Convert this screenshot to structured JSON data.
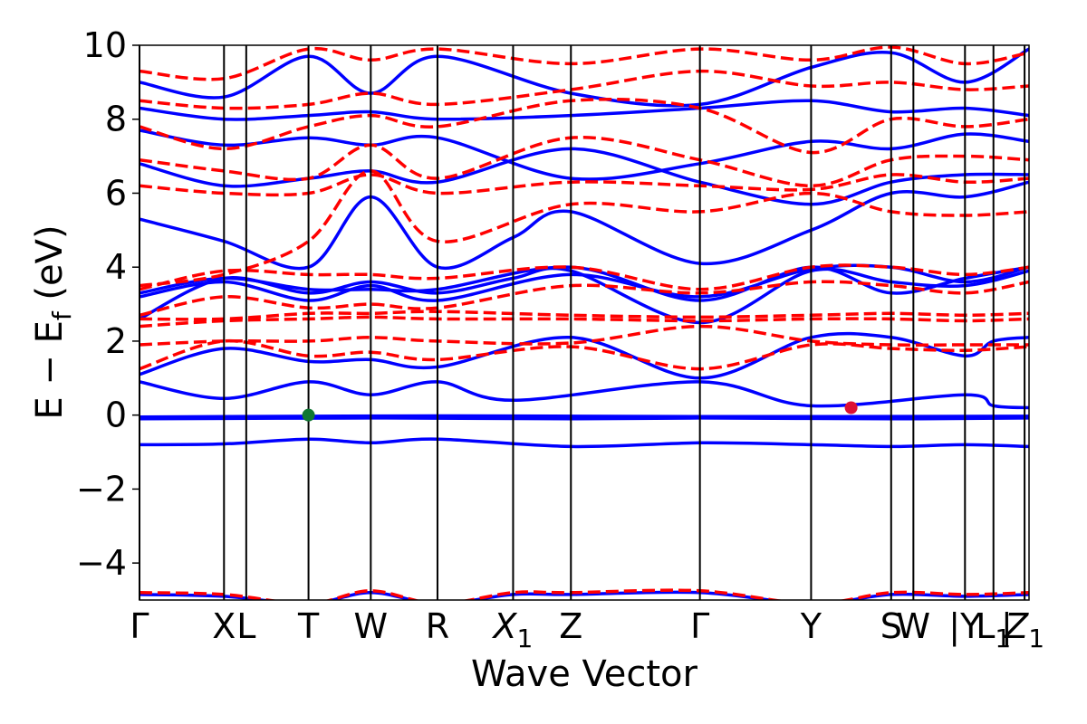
{
  "chart_data": {
    "type": "line",
    "title": "",
    "xlabel": "Wave Vector",
    "ylabel": "E − E_f (eV)",
    "ylabel_parts": {
      "main": "E − E",
      "sub": "f",
      "unit": " (eV)"
    },
    "ylim": [
      -5,
      10
    ],
    "yticks": [
      -4,
      -2,
      0,
      2,
      4,
      6,
      8,
      10
    ],
    "xlim": [
      0,
      10
    ],
    "kpoints": [
      {
        "label": "Γ",
        "x": 0.0
      },
      {
        "label": "X",
        "x": 0.95
      },
      {
        "label": "L",
        "x": 1.2
      },
      {
        "label": "T",
        "x": 1.9
      },
      {
        "label": "W",
        "x": 2.6
      },
      {
        "label": "R",
        "x": 3.35
      },
      {
        "label": "X1",
        "x": 4.2,
        "sub": "1"
      },
      {
        "label": "Z",
        "x": 4.85
      },
      {
        "label": "Γ",
        "x": 6.3
      },
      {
        "label": "Y",
        "x": 7.55
      },
      {
        "label": "S",
        "x": 8.45
      },
      {
        "label": "W",
        "x": 8.7
      },
      {
        "label": "|Y",
        "x": 9.28
      },
      {
        "label": "L1",
        "x": 9.6,
        "sub": "1"
      },
      {
        "label": "|",
        "x": 9.75
      },
      {
        "label": "Z1",
        "x": 9.95,
        "sub": "1"
      }
    ],
    "series": [
      {
        "color": "#0000ff",
        "dash": "solid",
        "x": [
          0,
          0.95,
          1.9,
          2.6,
          3.35,
          4.85,
          6.3,
          7.55,
          8.45,
          9.28,
          10
        ],
        "y": [
          -0.8,
          -0.78,
          -0.65,
          -0.75,
          -0.65,
          -0.85,
          -0.75,
          -0.8,
          -0.85,
          -0.8,
          -0.85
        ]
      },
      {
        "color": "#0000ff",
        "dash": "solid",
        "x": [
          0,
          2.6,
          4.85,
          6.3,
          8.45,
          10
        ],
        "y": [
          -0.1,
          -0.08,
          -0.1,
          -0.08,
          -0.1,
          -0.08
        ]
      },
      {
        "color": "#0000ff",
        "dash": "solid",
        "x": [
          0,
          3.35,
          6.3,
          10
        ],
        "y": [
          -0.05,
          -0.02,
          -0.04,
          -0.03
        ]
      },
      {
        "color": "#0000ff",
        "dash": "solid",
        "x": [
          0,
          0.95,
          1.9,
          2.6,
          3.35,
          4.2,
          6.3,
          7.55,
          9.28,
          9.6,
          10
        ],
        "y": [
          0.9,
          0.45,
          0.9,
          0.55,
          0.9,
          0.4,
          0.9,
          0.25,
          0.55,
          0.25,
          0.2
        ]
      },
      {
        "color": "#0000ff",
        "dash": "solid",
        "x": [
          0,
          0.95,
          1.9,
          2.6,
          3.35,
          4.85,
          6.3,
          7.55,
          8.45,
          9.28,
          9.6,
          10
        ],
        "y": [
          1.1,
          1.8,
          1.45,
          1.5,
          1.3,
          2.1,
          1.0,
          2.1,
          2.1,
          1.6,
          2.0,
          2.1
        ]
      },
      {
        "color": "#0000ff",
        "dash": "solid",
        "x": [
          0,
          0.95,
          1.9,
          2.6,
          3.35,
          4.2,
          4.85,
          6.3,
          7.55,
          8.45,
          9.28,
          10
        ],
        "y": [
          2.6,
          3.7,
          3.3,
          3.6,
          3.3,
          3.7,
          3.9,
          2.5,
          3.9,
          3.6,
          3.5,
          3.9
        ]
      },
      {
        "color": "#0000ff",
        "dash": "solid",
        "x": [
          0,
          0.95,
          1.9,
          2.6,
          3.35,
          4.85,
          6.3,
          7.55,
          8.45,
          9.28,
          10
        ],
        "y": [
          3.2,
          3.6,
          3.1,
          3.5,
          3.1,
          3.8,
          3.2,
          3.95,
          4.0,
          3.6,
          4.0
        ]
      },
      {
        "color": "#0000ff",
        "dash": "solid",
        "x": [
          0,
          0.95,
          1.9,
          2.6,
          3.35,
          4.85,
          6.3,
          7.55,
          8.45,
          9.28,
          10
        ],
        "y": [
          3.3,
          3.7,
          3.4,
          3.4,
          3.4,
          4.0,
          3.1,
          4.0,
          3.3,
          3.7,
          4.0
        ]
      },
      {
        "color": "#0000ff",
        "dash": "solid",
        "x": [
          0,
          0.95,
          1.9,
          2.6,
          3.35,
          4.2,
          4.85,
          6.3,
          7.55,
          8.45,
          9.28,
          10
        ],
        "y": [
          5.3,
          4.7,
          4.0,
          5.9,
          4.0,
          4.8,
          5.5,
          4.1,
          5.0,
          6.0,
          5.9,
          6.3
        ]
      },
      {
        "color": "#0000ff",
        "dash": "solid",
        "x": [
          0,
          0.95,
          1.9,
          2.6,
          3.35,
          4.85,
          6.3,
          7.55,
          8.45,
          9.28,
          10
        ],
        "y": [
          6.8,
          6.2,
          6.4,
          6.6,
          6.3,
          7.2,
          6.3,
          5.7,
          6.3,
          6.5,
          6.5
        ]
      },
      {
        "color": "#0000ff",
        "dash": "solid",
        "x": [
          0,
          0.95,
          1.9,
          2.6,
          3.35,
          4.85,
          6.3,
          7.55,
          8.45,
          9.28,
          10
        ],
        "y": [
          7.7,
          7.3,
          7.5,
          7.3,
          7.5,
          6.4,
          6.8,
          7.4,
          7.2,
          7.6,
          7.4
        ]
      },
      {
        "color": "#0000ff",
        "dash": "solid",
        "x": [
          0,
          0.95,
          1.9,
          2.6,
          3.35,
          4.85,
          6.3,
          7.55,
          8.45,
          9.28,
          10
        ],
        "y": [
          8.3,
          8.0,
          8.1,
          8.2,
          8.0,
          8.1,
          8.3,
          8.5,
          8.2,
          8.3,
          8.1
        ]
      },
      {
        "color": "#0000ff",
        "dash": "solid",
        "x": [
          0,
          0.95,
          1.9,
          2.6,
          3.35,
          4.85,
          6.3,
          7.55,
          8.45,
          9.28,
          10
        ],
        "y": [
          9.0,
          8.6,
          9.7,
          8.7,
          9.7,
          8.7,
          8.4,
          9.4,
          9.8,
          9.0,
          9.9
        ]
      },
      {
        "color": "#0000ff",
        "dash": "solid",
        "x": [
          0,
          0.95,
          1.9,
          2.6,
          3.35,
          4.2,
          4.85,
          6.3,
          7.55,
          8.45,
          9.28,
          10
        ],
        "y": [
          -4.85,
          -4.9,
          -5.1,
          -4.8,
          -5.1,
          -4.85,
          -4.85,
          -4.8,
          -5.1,
          -4.85,
          -4.9,
          -4.85
        ]
      },
      {
        "color": "#ff0000",
        "dash": "dashed",
        "x": [
          0,
          0.95,
          1.9,
          2.6,
          3.35,
          4.2,
          4.85,
          6.3,
          7.55,
          8.45,
          9.28,
          10
        ],
        "y": [
          -4.8,
          -4.85,
          -5.1,
          -4.75,
          -5.1,
          -4.8,
          -4.8,
          -4.75,
          -5.1,
          -4.8,
          -4.85,
          -4.8
        ]
      },
      {
        "color": "#ff0000",
        "dash": "dashed",
        "x": [
          0,
          0.95,
          1.9,
          2.6,
          3.35,
          4.85,
          6.3,
          7.55,
          8.45,
          9.28,
          10
        ],
        "y": [
          1.25,
          2.0,
          1.6,
          1.7,
          1.5,
          1.85,
          1.25,
          1.9,
          1.8,
          1.75,
          1.85
        ]
      },
      {
        "color": "#ff0000",
        "dash": "dashed",
        "x": [
          0,
          0.95,
          1.9,
          2.6,
          3.35,
          4.85,
          6.3,
          7.55,
          8.45,
          9.28,
          10
        ],
        "y": [
          1.9,
          2.0,
          2.0,
          2.1,
          2.0,
          1.95,
          2.4,
          2.0,
          1.9,
          1.9,
          1.9
        ]
      },
      {
        "color": "#ff0000",
        "dash": "dashed",
        "x": [
          0,
          0.95,
          1.9,
          2.6,
          3.35,
          4.85,
          6.3,
          7.55,
          8.45,
          9.28,
          10
        ],
        "y": [
          2.4,
          2.55,
          2.6,
          2.65,
          2.6,
          2.6,
          2.55,
          2.6,
          2.6,
          2.55,
          2.6
        ]
      },
      {
        "color": "#ff0000",
        "dash": "dashed",
        "x": [
          0,
          0.95,
          1.9,
          2.6,
          3.35,
          4.85,
          6.3,
          7.55,
          8.45,
          9.28,
          10
        ],
        "y": [
          2.6,
          2.6,
          2.75,
          2.75,
          2.8,
          2.7,
          2.65,
          2.7,
          2.75,
          2.7,
          2.75
        ]
      },
      {
        "color": "#ff0000",
        "dash": "dashed",
        "x": [
          0,
          0.95,
          1.9,
          2.6,
          3.35,
          4.85,
          6.3,
          7.55,
          8.45,
          9.28,
          10
        ],
        "y": [
          2.7,
          3.2,
          2.9,
          3.0,
          2.9,
          3.5,
          3.3,
          3.6,
          3.5,
          3.3,
          3.6
        ]
      },
      {
        "color": "#ff0000",
        "dash": "dashed",
        "x": [
          0,
          0.95,
          1.9,
          2.6,
          3.35,
          4.85,
          6.3,
          7.55,
          8.45,
          9.28,
          10
        ],
        "y": [
          3.4,
          3.9,
          3.8,
          3.8,
          3.7,
          4.0,
          3.4,
          4.0,
          4.0,
          3.8,
          4.0
        ]
      },
      {
        "color": "#ff0000",
        "dash": "dashed",
        "x": [
          0,
          0.95,
          1.9,
          2.6,
          3.35,
          4.85,
          6.3,
          7.55,
          8.45,
          9.28,
          10
        ],
        "y": [
          3.5,
          3.8,
          4.7,
          6.6,
          4.7,
          5.7,
          5.5,
          6.0,
          5.5,
          5.4,
          5.5
        ]
      },
      {
        "color": "#ff0000",
        "dash": "dashed",
        "x": [
          0,
          0.95,
          1.9,
          2.6,
          3.35,
          4.85,
          6.3,
          7.55,
          8.45,
          9.28,
          10
        ],
        "y": [
          6.2,
          6.0,
          6.0,
          6.5,
          6.0,
          6.3,
          6.2,
          6.1,
          6.5,
          6.3,
          6.4
        ]
      },
      {
        "color": "#ff0000",
        "dash": "dashed",
        "x": [
          0,
          0.95,
          1.9,
          2.6,
          3.35,
          4.85,
          6.3,
          7.55,
          8.45,
          9.28,
          10
        ],
        "y": [
          6.9,
          6.6,
          6.4,
          7.3,
          6.4,
          7.5,
          6.9,
          6.2,
          6.9,
          7.0,
          6.9
        ]
      },
      {
        "color": "#ff0000",
        "dash": "dashed",
        "x": [
          0,
          0.95,
          1.9,
          2.6,
          3.35,
          4.85,
          6.3,
          7.55,
          8.45,
          9.28,
          10
        ],
        "y": [
          7.8,
          7.2,
          7.8,
          8.1,
          7.8,
          8.5,
          8.3,
          7.1,
          8.0,
          7.8,
          8.0
        ]
      },
      {
        "color": "#ff0000",
        "dash": "dashed",
        "x": [
          0,
          0.95,
          1.9,
          2.6,
          3.35,
          4.85,
          6.3,
          7.55,
          8.45,
          9.28,
          10
        ],
        "y": [
          8.5,
          8.3,
          8.4,
          8.7,
          8.4,
          8.8,
          9.3,
          8.9,
          9.0,
          8.8,
          8.9
        ]
      },
      {
        "color": "#ff0000",
        "dash": "dashed",
        "x": [
          0,
          0.95,
          1.9,
          2.6,
          3.35,
          4.85,
          6.3,
          7.55,
          8.45,
          9.28,
          10
        ],
        "y": [
          9.3,
          9.1,
          9.9,
          9.6,
          9.9,
          9.5,
          9.9,
          9.6,
          9.95,
          9.5,
          9.8
        ]
      }
    ],
    "markers": [
      {
        "x": 1.9,
        "y": 0.0,
        "color": "#117733"
      },
      {
        "x": 8.0,
        "y": 0.2,
        "color": "#dd1133"
      }
    ],
    "grid": false,
    "legend": "none"
  }
}
